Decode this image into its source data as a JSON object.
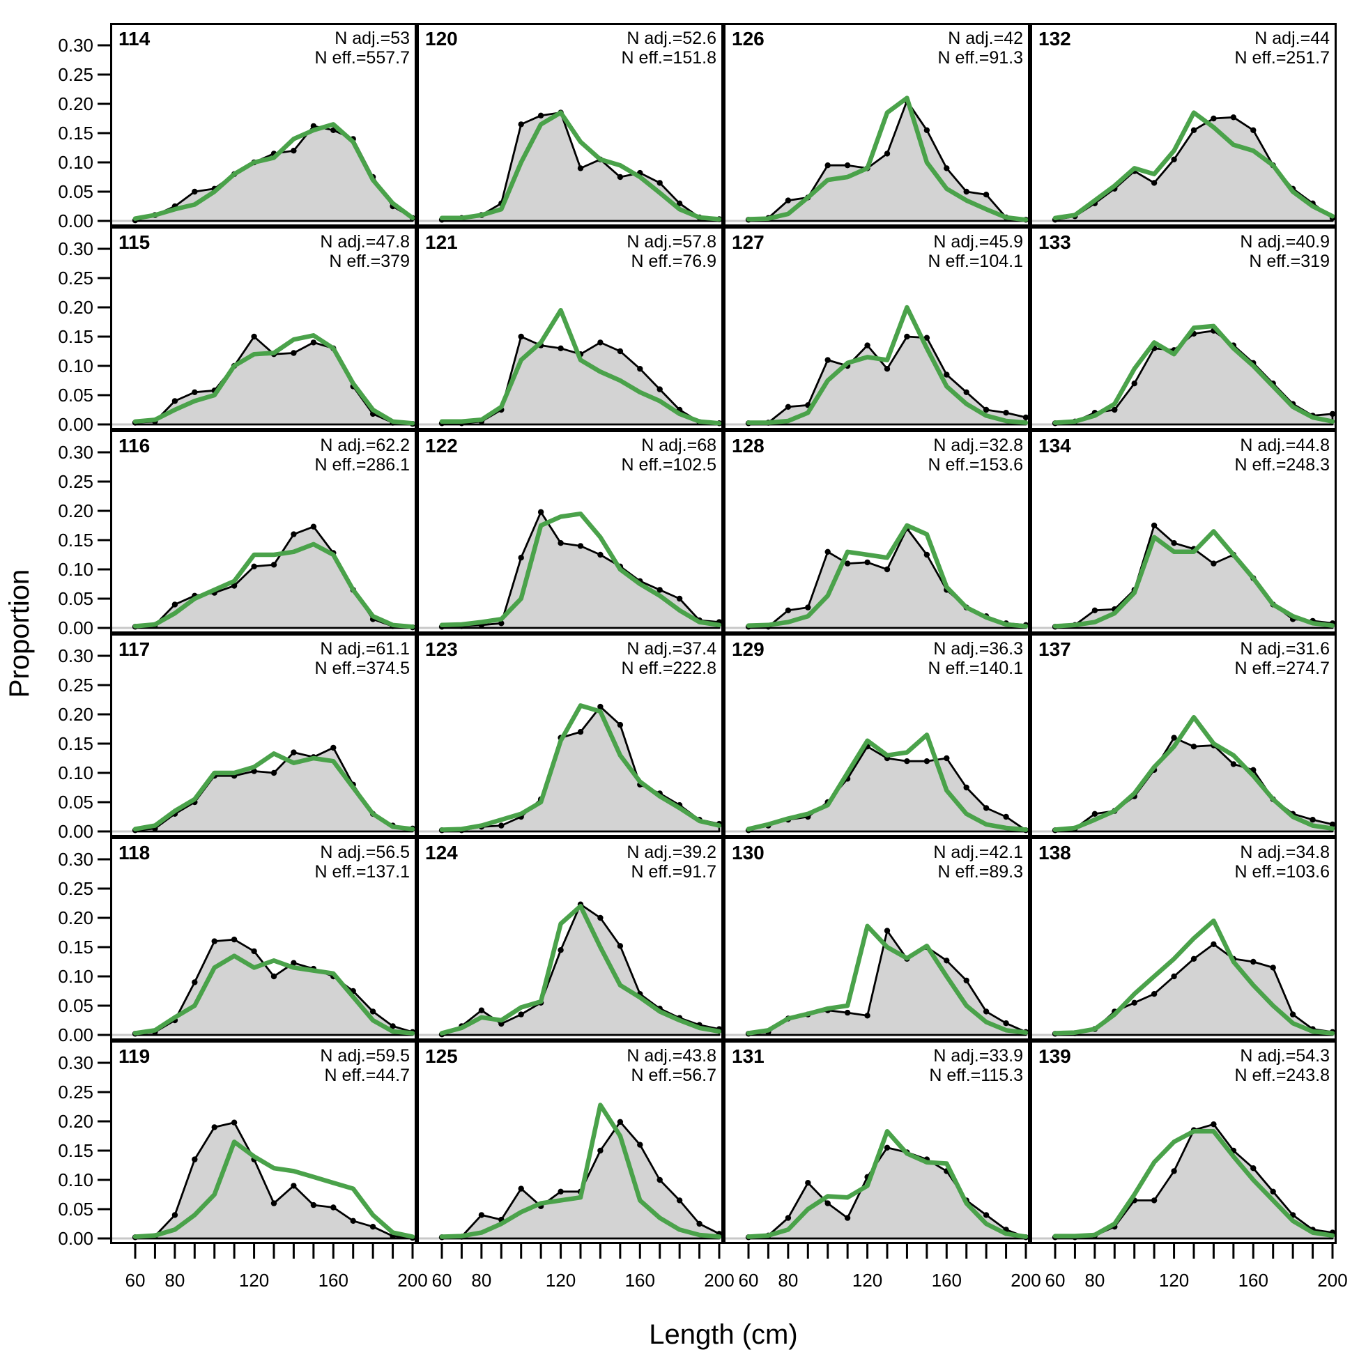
{
  "figure": {
    "y_axis_title": "Proportion",
    "x_axis_title": "Length (cm)",
    "y_tick_labels": [
      "0.00",
      "0.05",
      "0.10",
      "0.15",
      "0.20",
      "0.25",
      "0.30"
    ],
    "y_tick_values": [
      0.0,
      0.05,
      0.1,
      0.15,
      0.2,
      0.25,
      0.3
    ],
    "x_tick_values": [
      60,
      70,
      80,
      90,
      100,
      110,
      120,
      130,
      140,
      150,
      160,
      170,
      180,
      190,
      200
    ],
    "x_tick_label_values": [
      60,
      80,
      120,
      160,
      200
    ],
    "colors": {
      "observed_fill": "#d3d3d3",
      "observed_line": "#000000",
      "predicted_line": "#4aa24a",
      "zero_line": "#c8c8c8",
      "background": "#ffffff"
    }
  },
  "chart_data": {
    "type": "area",
    "description": "6x4 grid of length-composition panels: observed proportions (grey filled polygon with black points) and model-predicted proportions (green line) by length bin",
    "x": [
      60,
      70,
      80,
      90,
      100,
      110,
      120,
      130,
      140,
      150,
      160,
      170,
      180,
      190,
      200
    ],
    "xlabel": "Length (cm)",
    "ylabel": "Proportion",
    "ylim": [
      0,
      0.315
    ],
    "series_names": {
      "observed": "observed (grey area, black points)",
      "predicted": "predicted (green line)"
    },
    "panels": [
      {
        "id": "114",
        "n_adj_label": "N adj.=53",
        "n_eff_label": "N eff.=557.7",
        "observed": [
          0.001,
          0.01,
          0.025,
          0.05,
          0.055,
          0.08,
          0.1,
          0.115,
          0.12,
          0.162,
          0.155,
          0.14,
          0.075,
          0.025,
          0.005
        ],
        "predicted": [
          0.004,
          0.01,
          0.02,
          0.028,
          0.05,
          0.08,
          0.1,
          0.108,
          0.14,
          0.155,
          0.165,
          0.135,
          0.07,
          0.03,
          0.005
        ]
      },
      {
        "id": "120",
        "n_adj_label": "N adj.=52.6",
        "n_eff_label": "N eff.=151.8",
        "observed": [
          0.002,
          0.005,
          0.01,
          0.03,
          0.165,
          0.18,
          0.185,
          0.09,
          0.105,
          0.075,
          0.082,
          0.065,
          0.03,
          0.006,
          0.003
        ],
        "predicted": [
          0.005,
          0.005,
          0.01,
          0.02,
          0.1,
          0.165,
          0.185,
          0.135,
          0.105,
          0.095,
          0.075,
          0.048,
          0.02,
          0.006,
          0.003
        ]
      },
      {
        "id": "126",
        "n_adj_label": "N adj.=42",
        "n_eff_label": "N eff.=91.3",
        "observed": [
          0.002,
          0.005,
          0.035,
          0.04,
          0.095,
          0.095,
          0.09,
          0.115,
          0.205,
          0.155,
          0.09,
          0.05,
          0.045,
          0.006,
          0.002
        ],
        "predicted": [
          0.003,
          0.004,
          0.012,
          0.04,
          0.07,
          0.075,
          0.09,
          0.185,
          0.21,
          0.1,
          0.055,
          0.035,
          0.02,
          0.006,
          0.002
        ]
      },
      {
        "id": "132",
        "n_adj_label": "N adj.=44",
        "n_eff_label": "N eff.=251.7",
        "observed": [
          0.002,
          0.008,
          0.03,
          0.055,
          0.085,
          0.065,
          0.105,
          0.155,
          0.175,
          0.177,
          0.155,
          0.095,
          0.055,
          0.03,
          0.005
        ],
        "predicted": [
          0.005,
          0.01,
          0.035,
          0.06,
          0.09,
          0.08,
          0.12,
          0.185,
          0.16,
          0.13,
          0.12,
          0.095,
          0.05,
          0.025,
          0.008
        ]
      },
      {
        "id": "115",
        "n_adj_label": "N adj.=47.8",
        "n_eff_label": "N eff.=379",
        "observed": [
          0.003,
          0.005,
          0.04,
          0.055,
          0.058,
          0.1,
          0.15,
          0.12,
          0.122,
          0.14,
          0.13,
          0.065,
          0.018,
          0.003,
          0.001
        ],
        "predicted": [
          0.005,
          0.008,
          0.025,
          0.04,
          0.05,
          0.1,
          0.12,
          0.122,
          0.145,
          0.152,
          0.13,
          0.07,
          0.025,
          0.005,
          0.002
        ]
      },
      {
        "id": "121",
        "n_adj_label": "N adj.=57.8",
        "n_eff_label": "N eff.=76.9",
        "observed": [
          0.002,
          0.002,
          0.005,
          0.025,
          0.15,
          0.135,
          0.13,
          0.12,
          0.14,
          0.125,
          0.095,
          0.06,
          0.025,
          0.004,
          0.002
        ],
        "predicted": [
          0.005,
          0.005,
          0.008,
          0.03,
          0.11,
          0.14,
          0.195,
          0.11,
          0.09,
          0.075,
          0.055,
          0.04,
          0.018,
          0.005,
          0.002
        ]
      },
      {
        "id": "127",
        "n_adj_label": "N adj.=45.9",
        "n_eff_label": "N eff.=104.1",
        "observed": [
          0.002,
          0.003,
          0.03,
          0.033,
          0.11,
          0.1,
          0.135,
          0.095,
          0.15,
          0.148,
          0.085,
          0.055,
          0.025,
          0.02,
          0.012
        ],
        "predicted": [
          0.003,
          0.003,
          0.006,
          0.02,
          0.075,
          0.105,
          0.115,
          0.11,
          0.2,
          0.13,
          0.065,
          0.035,
          0.015,
          0.006,
          0.003
        ]
      },
      {
        "id": "133",
        "n_adj_label": "N adj.=40.9",
        "n_eff_label": "N eff.=319",
        "observed": [
          0.002,
          0.005,
          0.02,
          0.025,
          0.07,
          0.13,
          0.127,
          0.155,
          0.16,
          0.135,
          0.105,
          0.07,
          0.035,
          0.015,
          0.018
        ],
        "predicted": [
          0.003,
          0.005,
          0.015,
          0.035,
          0.095,
          0.14,
          0.12,
          0.165,
          0.168,
          0.13,
          0.1,
          0.065,
          0.03,
          0.012,
          0.005
        ]
      },
      {
        "id": "116",
        "n_adj_label": "N adj.=62.2",
        "n_eff_label": "N eff.=286.1",
        "observed": [
          0.002,
          0.005,
          0.04,
          0.055,
          0.06,
          0.072,
          0.105,
          0.108,
          0.16,
          0.173,
          0.128,
          0.065,
          0.015,
          0.003,
          0.001
        ],
        "predicted": [
          0.003,
          0.006,
          0.025,
          0.05,
          0.065,
          0.08,
          0.125,
          0.125,
          0.13,
          0.143,
          0.125,
          0.065,
          0.02,
          0.005,
          0.002
        ]
      },
      {
        "id": "122",
        "n_adj_label": "N adj.=68",
        "n_eff_label": "N eff.=102.5",
        "observed": [
          0.002,
          0.003,
          0.005,
          0.008,
          0.12,
          0.198,
          0.145,
          0.14,
          0.125,
          0.105,
          0.08,
          0.065,
          0.05,
          0.013,
          0.01
        ],
        "predicted": [
          0.005,
          0.006,
          0.01,
          0.015,
          0.05,
          0.175,
          0.19,
          0.195,
          0.155,
          0.1,
          0.075,
          0.055,
          0.03,
          0.01,
          0.005
        ]
      },
      {
        "id": "128",
        "n_adj_label": "N adj.=32.8",
        "n_eff_label": "N eff.=153.6",
        "observed": [
          0.002,
          0.002,
          0.03,
          0.035,
          0.13,
          0.11,
          0.112,
          0.1,
          0.17,
          0.125,
          0.065,
          0.035,
          0.02,
          0.008,
          0.005
        ],
        "predicted": [
          0.004,
          0.005,
          0.01,
          0.02,
          0.055,
          0.13,
          0.125,
          0.12,
          0.175,
          0.16,
          0.07,
          0.035,
          0.018,
          0.006,
          0.003
        ]
      },
      {
        "id": "134",
        "n_adj_label": "N adj.=44.8",
        "n_eff_label": "N eff.=248.3",
        "observed": [
          0.002,
          0.005,
          0.03,
          0.032,
          0.065,
          0.175,
          0.145,
          0.135,
          0.11,
          0.125,
          0.085,
          0.04,
          0.015,
          0.012,
          0.008
        ],
        "predicted": [
          0.003,
          0.005,
          0.01,
          0.025,
          0.06,
          0.155,
          0.13,
          0.13,
          0.165,
          0.125,
          0.085,
          0.04,
          0.02,
          0.008,
          0.004
        ]
      },
      {
        "id": "117",
        "n_adj_label": "N adj.=61.1",
        "n_eff_label": "N eff.=374.5",
        "observed": [
          0.002,
          0.005,
          0.03,
          0.05,
          0.095,
          0.095,
          0.103,
          0.1,
          0.135,
          0.127,
          0.143,
          0.08,
          0.03,
          0.01,
          0.005
        ],
        "predicted": [
          0.004,
          0.01,
          0.035,
          0.055,
          0.1,
          0.1,
          0.11,
          0.133,
          0.117,
          0.125,
          0.12,
          0.075,
          0.03,
          0.008,
          0.004
        ]
      },
      {
        "id": "123",
        "n_adj_label": "N adj.=37.4",
        "n_eff_label": "N eff.=222.8",
        "observed": [
          0.002,
          0.002,
          0.008,
          0.01,
          0.025,
          0.055,
          0.16,
          0.17,
          0.213,
          0.182,
          0.08,
          0.065,
          0.045,
          0.02,
          0.013
        ],
        "predicted": [
          0.003,
          0.004,
          0.01,
          0.02,
          0.03,
          0.05,
          0.155,
          0.215,
          0.205,
          0.13,
          0.085,
          0.06,
          0.04,
          0.018,
          0.01
        ]
      },
      {
        "id": "129",
        "n_adj_label": "N adj.=36.3",
        "n_eff_label": "N eff.=140.1",
        "observed": [
          0.002,
          0.01,
          0.02,
          0.025,
          0.05,
          0.09,
          0.145,
          0.125,
          0.12,
          0.12,
          0.125,
          0.075,
          0.04,
          0.025,
          0.002
        ],
        "predicted": [
          0.004,
          0.012,
          0.022,
          0.03,
          0.045,
          0.1,
          0.155,
          0.13,
          0.135,
          0.165,
          0.07,
          0.03,
          0.012,
          0.006,
          0.003
        ]
      },
      {
        "id": "137",
        "n_adj_label": "N adj.=31.6",
        "n_eff_label": "N eff.=274.7",
        "observed": [
          0.002,
          0.005,
          0.03,
          0.035,
          0.06,
          0.105,
          0.16,
          0.145,
          0.147,
          0.115,
          0.105,
          0.055,
          0.03,
          0.02,
          0.012
        ],
        "predicted": [
          0.003,
          0.006,
          0.02,
          0.035,
          0.065,
          0.11,
          0.145,
          0.195,
          0.15,
          0.13,
          0.095,
          0.055,
          0.025,
          0.01,
          0.005
        ]
      },
      {
        "id": "118",
        "n_adj_label": "N adj.=56.5",
        "n_eff_label": "N eff.=137.1",
        "observed": [
          0.002,
          0.005,
          0.025,
          0.09,
          0.16,
          0.163,
          0.143,
          0.1,
          0.123,
          0.113,
          0.1,
          0.075,
          0.04,
          0.015,
          0.005
        ],
        "predicted": [
          0.003,
          0.008,
          0.03,
          0.05,
          0.115,
          0.135,
          0.115,
          0.127,
          0.115,
          0.11,
          0.105,
          0.065,
          0.025,
          0.006,
          0.003
        ]
      },
      {
        "id": "124",
        "n_adj_label": "N adj.=39.2",
        "n_eff_label": "N eff.=91.7",
        "observed": [
          0.001,
          0.015,
          0.042,
          0.019,
          0.035,
          0.055,
          0.145,
          0.223,
          0.2,
          0.152,
          0.07,
          0.045,
          0.029,
          0.017,
          0.01
        ],
        "predicted": [
          0.003,
          0.012,
          0.03,
          0.025,
          0.047,
          0.057,
          0.19,
          0.22,
          0.15,
          0.085,
          0.064,
          0.04,
          0.025,
          0.012,
          0.006
        ]
      },
      {
        "id": "130",
        "n_adj_label": "N adj.=42.1",
        "n_eff_label": "N eff.=89.3",
        "observed": [
          0.002,
          0.005,
          0.028,
          0.035,
          0.042,
          0.038,
          0.033,
          0.178,
          0.13,
          0.15,
          0.127,
          0.093,
          0.04,
          0.02,
          0.005
        ],
        "predicted": [
          0.003,
          0.008,
          0.028,
          0.036,
          0.045,
          0.05,
          0.186,
          0.15,
          0.131,
          0.152,
          0.1,
          0.05,
          0.022,
          0.008,
          0.004
        ]
      },
      {
        "id": "138",
        "n_adj_label": "N adj.=34.8",
        "n_eff_label": "N eff.=103.6",
        "observed": [
          0.002,
          0.003,
          0.01,
          0.04,
          0.055,
          0.07,
          0.1,
          0.13,
          0.155,
          0.13,
          0.125,
          0.115,
          0.035,
          0.01,
          0.005
        ],
        "predicted": [
          0.003,
          0.004,
          0.01,
          0.035,
          0.07,
          0.1,
          0.13,
          0.165,
          0.195,
          0.125,
          0.085,
          0.05,
          0.02,
          0.006,
          0.003
        ]
      },
      {
        "id": "119",
        "n_adj_label": "N adj.=59.5",
        "n_eff_label": "N eff.=44.7",
        "observed": [
          0.002,
          0.004,
          0.04,
          0.135,
          0.19,
          0.198,
          0.135,
          0.06,
          0.09,
          0.057,
          0.053,
          0.03,
          0.02,
          0.004,
          0.001
        ],
        "predicted": [
          0.003,
          0.005,
          0.015,
          0.04,
          0.075,
          0.165,
          0.14,
          0.12,
          0.115,
          0.105,
          0.095,
          0.085,
          0.04,
          0.01,
          0.003
        ]
      },
      {
        "id": "125",
        "n_adj_label": "N adj.=43.8",
        "n_eff_label": "N eff.=56.7",
        "observed": [
          0.002,
          0.003,
          0.04,
          0.032,
          0.085,
          0.055,
          0.08,
          0.08,
          0.15,
          0.199,
          0.16,
          0.1,
          0.065,
          0.025,
          0.008
        ],
        "predicted": [
          0.003,
          0.004,
          0.01,
          0.025,
          0.045,
          0.06,
          0.065,
          0.07,
          0.228,
          0.175,
          0.065,
          0.035,
          0.015,
          0.006,
          0.003
        ]
      },
      {
        "id": "131",
        "n_adj_label": "N adj.=33.9",
        "n_eff_label": "N eff.=115.3",
        "observed": [
          0.002,
          0.005,
          0.035,
          0.095,
          0.06,
          0.035,
          0.105,
          0.155,
          0.147,
          0.135,
          0.115,
          0.065,
          0.04,
          0.015,
          0.002
        ],
        "predicted": [
          0.003,
          0.005,
          0.015,
          0.05,
          0.072,
          0.07,
          0.09,
          0.183,
          0.145,
          0.13,
          0.128,
          0.06,
          0.025,
          0.008,
          0.003
        ]
      },
      {
        "id": "139",
        "n_adj_label": "N adj.=54.3",
        "n_eff_label": "N eff.=243.8",
        "observed": [
          0.002,
          0.002,
          0.005,
          0.02,
          0.065,
          0.065,
          0.115,
          0.185,
          0.195,
          0.15,
          0.12,
          0.08,
          0.04,
          0.015,
          0.01
        ],
        "predicted": [
          0.004,
          0.004,
          0.006,
          0.025,
          0.075,
          0.13,
          0.165,
          0.183,
          0.183,
          0.14,
          0.1,
          0.065,
          0.03,
          0.01,
          0.005
        ]
      }
    ]
  }
}
